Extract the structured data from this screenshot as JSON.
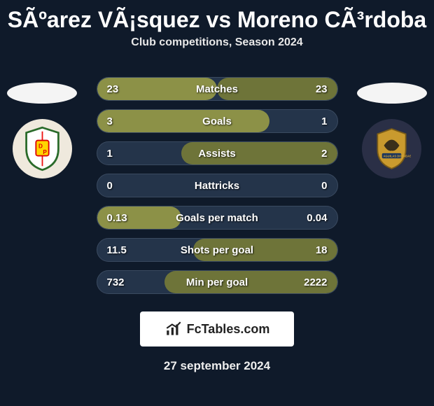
{
  "header": {
    "title": "SÃºarez VÃ¡squez vs Moreno CÃ³rdoba",
    "subtitle": "Club competitions, Season 2024"
  },
  "colors": {
    "bar_left": "#8c9147",
    "bar_right": "#6e7439",
    "flag_left_bg": "#f4f4f4",
    "flag_right_bg": "#f4f4f4",
    "branding_bg": "#ffffff"
  },
  "stats": [
    {
      "label": "Matches",
      "left_val": "23",
      "right_val": "23",
      "left_pct": 50,
      "right_pct": 50
    },
    {
      "label": "Goals",
      "left_val": "3",
      "right_val": "1",
      "left_pct": 72,
      "right_pct": 0
    },
    {
      "label": "Assists",
      "left_val": "1",
      "right_val": "2",
      "left_pct": 0,
      "right_pct": 65
    },
    {
      "label": "Hattricks",
      "left_val": "0",
      "right_val": "0",
      "left_pct": 0,
      "right_pct": 0
    },
    {
      "label": "Goals per match",
      "left_val": "0.13",
      "right_val": "0.04",
      "left_pct": 35,
      "right_pct": 0
    },
    {
      "label": "Shots per goal",
      "left_val": "11.5",
      "right_val": "18",
      "left_pct": 0,
      "right_pct": 60
    },
    {
      "label": "Min per goal",
      "left_val": "732",
      "right_val": "2222",
      "left_pct": 0,
      "right_pct": 72
    }
  ],
  "branding": {
    "text": "FcTables.com"
  },
  "footer": {
    "date": "27 september 2024"
  }
}
